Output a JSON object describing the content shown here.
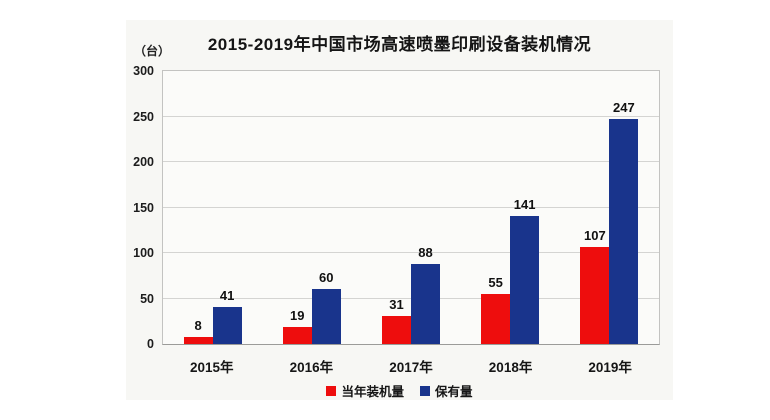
{
  "chart": {
    "title": "2015-2019年中国市场高速喷墨印刷设备装机情况",
    "unit_label": "（台）"
  },
  "chart_data": {
    "type": "bar",
    "title": "2015-2019年中国市场高速喷墨印刷设备装机情况",
    "categories": [
      "2015年",
      "2016年",
      "2017年",
      "2018年",
      "2019年"
    ],
    "series": [
      {
        "name": "当年装机量",
        "color": "#ee0d0d",
        "values": [
          8,
          19,
          31,
          55,
          107
        ]
      },
      {
        "name": "保有量",
        "color": "#19348c",
        "values": [
          41,
          60,
          88,
          141,
          247
        ]
      }
    ],
    "xlabel": "",
    "ylabel": "（台）",
    "ylim": [
      0,
      300
    ],
    "yticks": [
      0,
      50,
      100,
      150,
      200,
      250,
      300
    ],
    "grid": true,
    "legend_position": "bottom",
    "background": "#f7f7f4"
  }
}
